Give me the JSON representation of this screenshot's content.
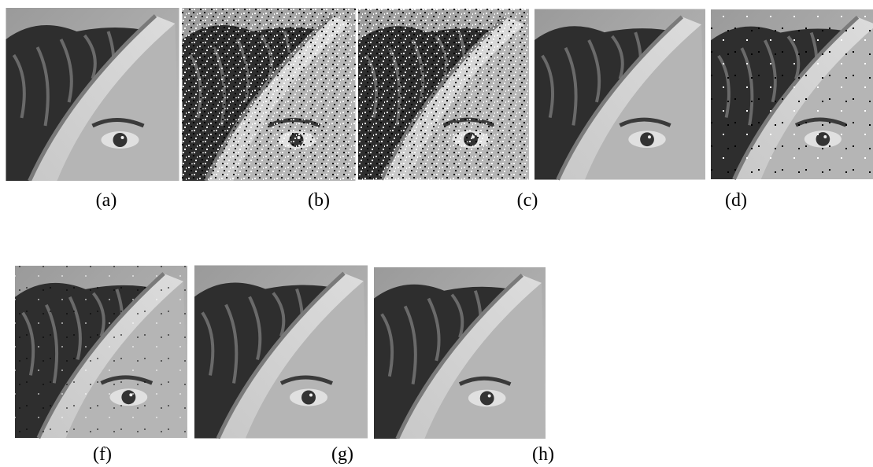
{
  "panels": [
    {
      "label": "(a)"
    },
    {
      "label": "(b)"
    },
    {
      "label": "(c)"
    },
    {
      "label": "(d)"
    },
    {
      "label": "(f)"
    },
    {
      "label": "(g)"
    },
    {
      "label": "(h)"
    }
  ]
}
